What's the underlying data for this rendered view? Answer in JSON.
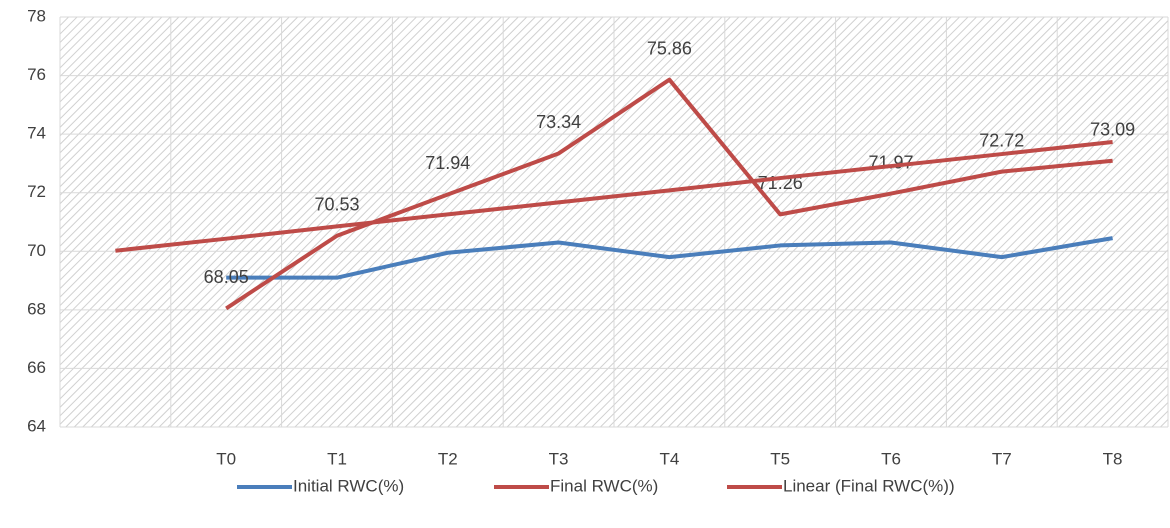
{
  "chart_data": {
    "type": "line",
    "categories": [
      null,
      "T0",
      "T1",
      "T2",
      "T3",
      "T4",
      "T5",
      "T6",
      "T7",
      "T8"
    ],
    "series": [
      {
        "name": "Initial RWC(%)",
        "color": "#4a7ebb",
        "values": [
          null,
          69.1,
          69.1,
          69.95,
          70.3,
          69.8,
          70.2,
          70.3,
          69.8,
          70.45
        ]
      },
      {
        "name": "Final RWC(%)",
        "color": "#be4b48",
        "values": [
          null,
          68.05,
          70.53,
          71.94,
          73.34,
          75.86,
          71.26,
          71.97,
          72.72,
          73.09
        ],
        "data_labels": true
      },
      {
        "name": "Linear (Final RWC(%))",
        "color": "#be4b48",
        "values": [
          70.02,
          70.43,
          70.85,
          71.26,
          71.67,
          72.08,
          72.5,
          72.91,
          73.32,
          73.73
        ]
      }
    ],
    "ylim": [
      64,
      78
    ],
    "yticks": [
      64,
      66,
      68,
      70,
      72,
      74,
      76,
      78
    ],
    "grid": true,
    "legend": "bottom"
  }
}
